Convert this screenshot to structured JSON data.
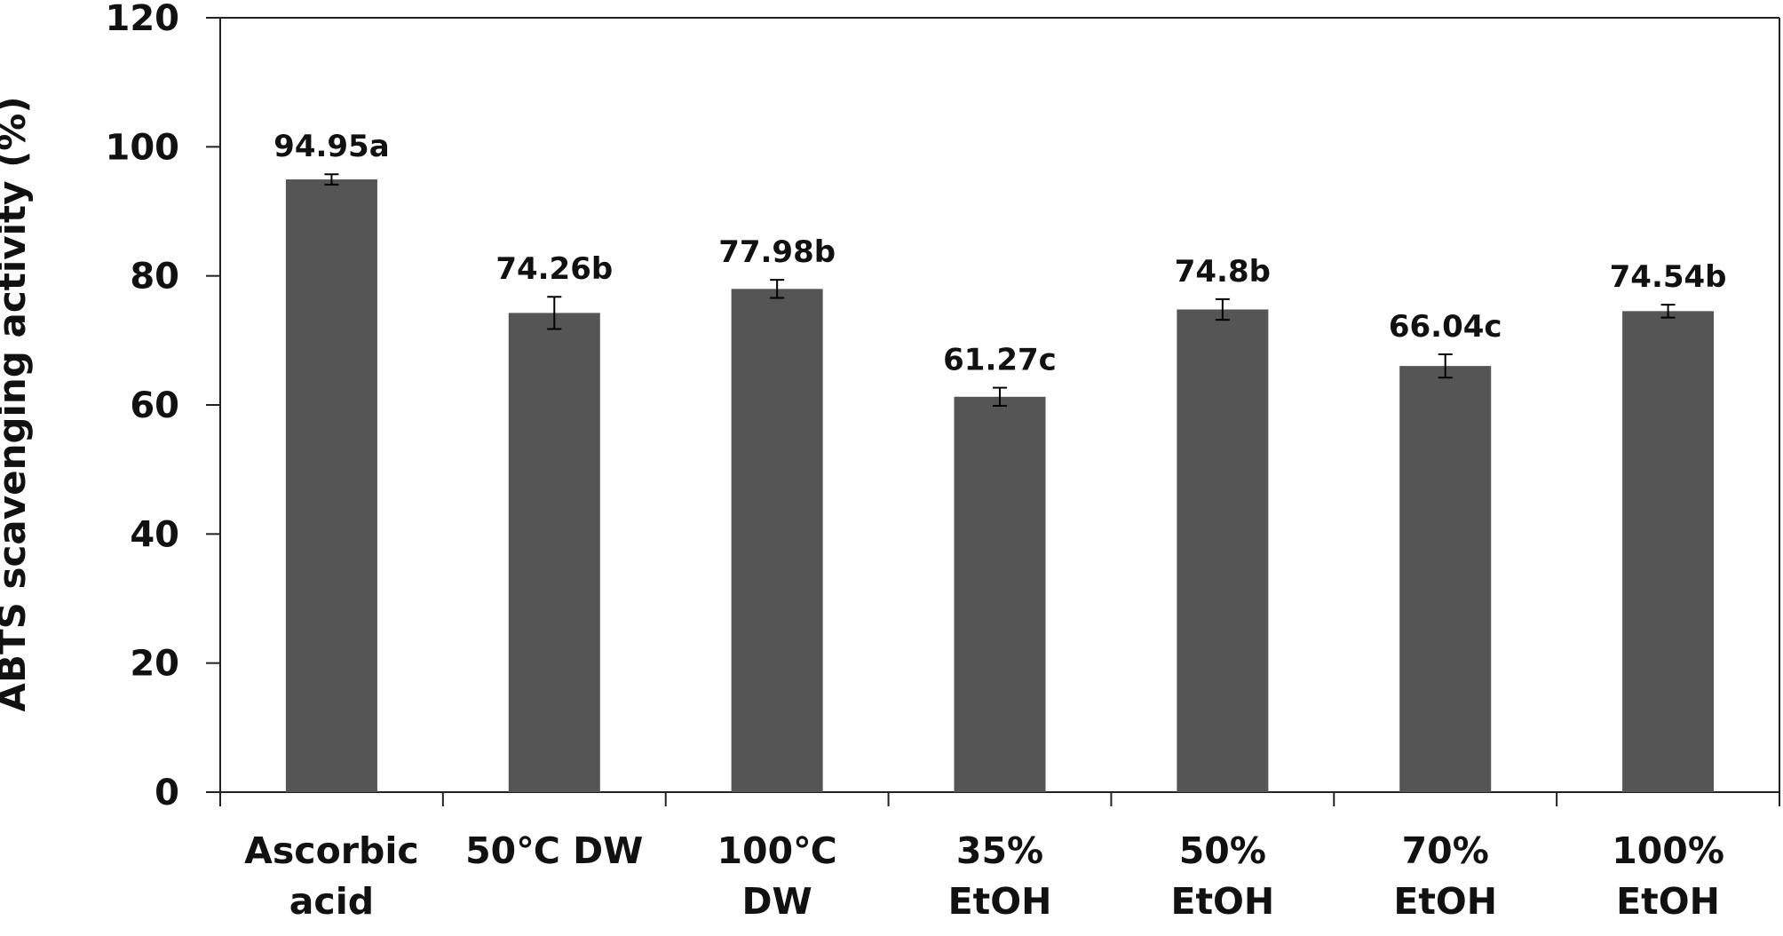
{
  "chart_data": {
    "type": "bar",
    "title": "",
    "xlabel": "",
    "ylabel": "ABTS scavenging activity (%)",
    "ylim": [
      0,
      120
    ],
    "yticks": [
      0,
      20,
      40,
      60,
      80,
      100,
      120
    ],
    "grid": false,
    "legend": "none",
    "bar_color": "#555555",
    "categories": [
      [
        "Ascorbic",
        "acid"
      ],
      [
        "50℃ DW"
      ],
      [
        "100℃",
        "DW"
      ],
      [
        "35%",
        "EtOH"
      ],
      [
        "50%",
        "EtOH"
      ],
      [
        "70%",
        "EtOH"
      ],
      [
        "100%",
        "EtOH"
      ]
    ],
    "values": [
      94.95,
      74.26,
      77.98,
      61.27,
      74.8,
      66.04,
      74.54
    ],
    "errors": [
      0.8,
      2.5,
      1.4,
      1.4,
      1.6,
      1.8,
      1.0
    ],
    "data_labels": [
      "94.95a",
      "74.26b",
      "77.98b",
      "61.27c",
      "74.8b",
      "66.04c",
      "74.54b"
    ]
  }
}
